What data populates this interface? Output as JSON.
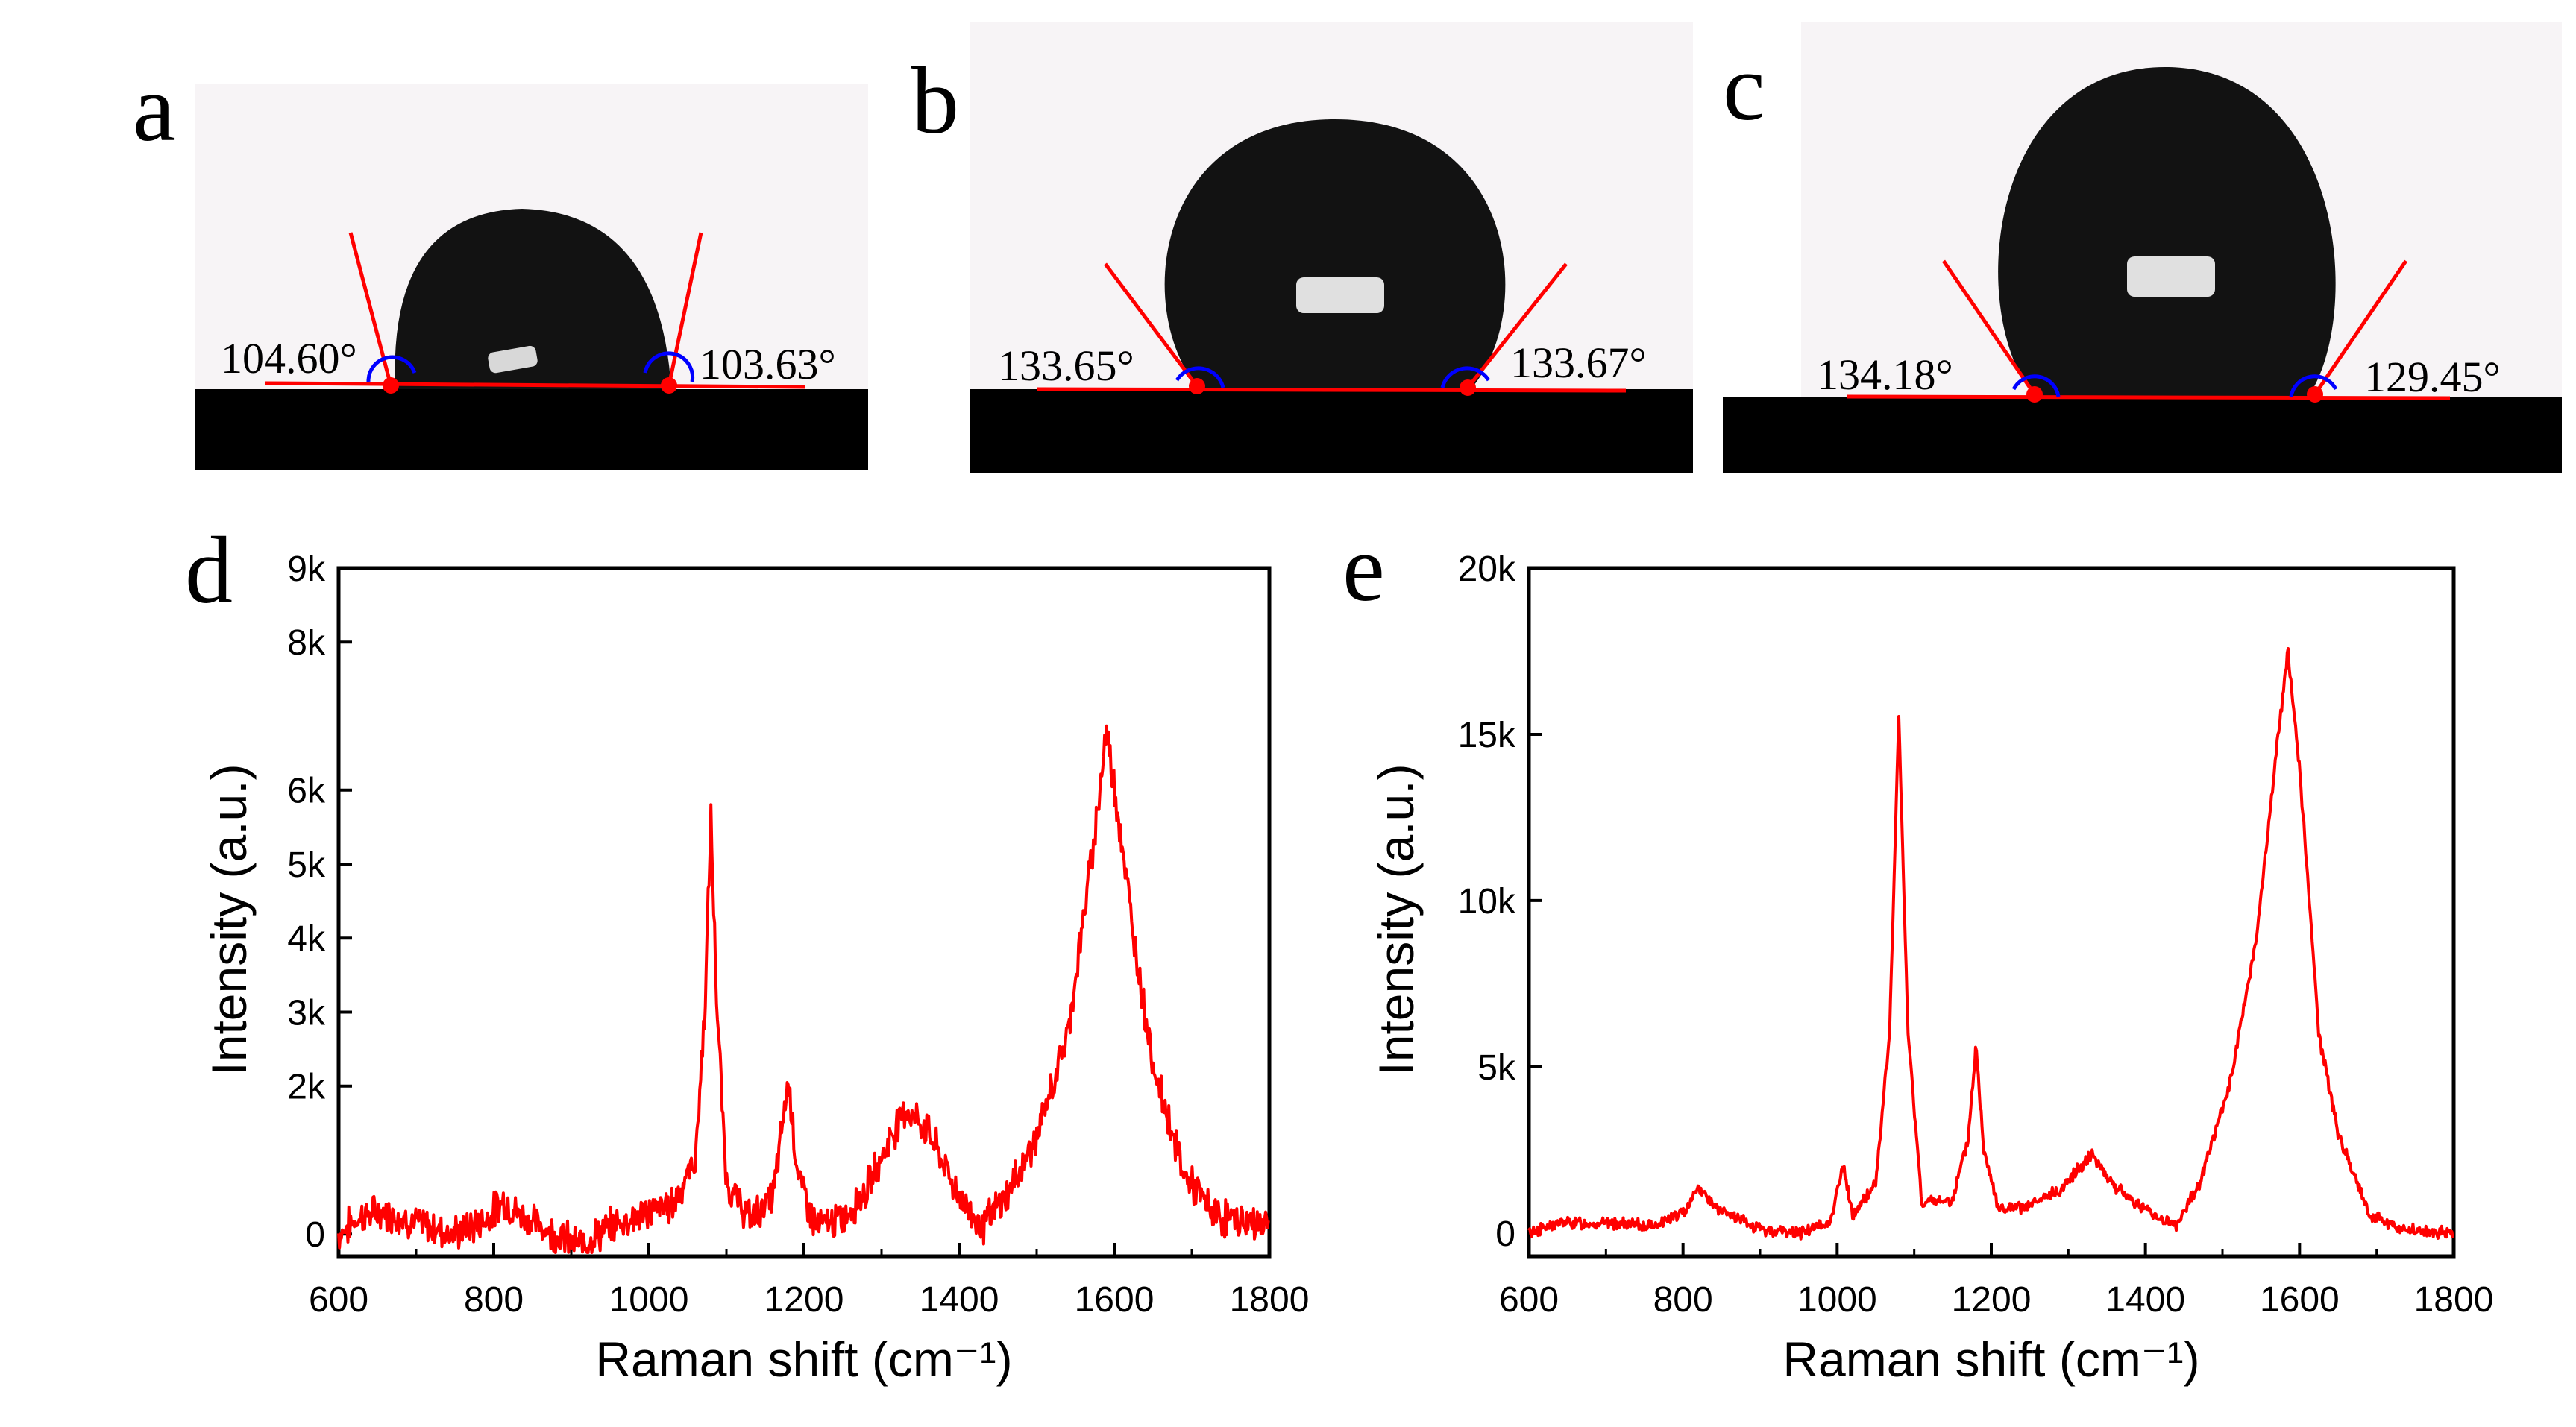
{
  "panels": {
    "a": {
      "letter": "a",
      "left_angle": "104.60°",
      "right_angle": "103.63°"
    },
    "b": {
      "letter": "b",
      "left_angle": "133.65°",
      "right_angle": "133.67°"
    },
    "c": {
      "letter": "c",
      "left_angle": "134.18°",
      "right_angle": "129.45°"
    },
    "d": {
      "letter": "d"
    },
    "e": {
      "letter": "e"
    }
  },
  "colors": {
    "line": "#ff0000",
    "arc": "#0000ff",
    "substrate": "#000000",
    "droplet": "#111111"
  },
  "chart_data": [
    {
      "id": "d",
      "type": "line",
      "title": "",
      "xlabel": "Raman shift (cm⁻¹)",
      "ylabel": "Intensity (a.u.)",
      "xlim": [
        600,
        1800
      ],
      "ylim": [
        -300,
        9000
      ],
      "xticks": [
        600,
        800,
        1000,
        1200,
        1400,
        1600,
        1800
      ],
      "xtick_labels": [
        "600",
        "800",
        "1000",
        "1200",
        "1400",
        "1600",
        "1800"
      ],
      "yticks": [
        0,
        2000,
        3000,
        4000,
        5000,
        6000,
        8000,
        9000
      ],
      "ytick_labels": [
        "0",
        "2k",
        "3k",
        "4k",
        "5k",
        "6k",
        "8k",
        "9k"
      ],
      "baseline": [
        [
          600,
          0
        ],
        [
          630,
          250
        ],
        [
          660,
          300
        ],
        [
          700,
          150
        ],
        [
          750,
          0
        ],
        [
          790,
          200
        ],
        [
          812,
          450
        ],
        [
          835,
          250
        ],
        [
          880,
          0
        ],
        [
          910,
          -150
        ],
        [
          960,
          150
        ],
        [
          1000,
          300
        ],
        [
          1030,
          400
        ],
        [
          1060,
          1000
        ],
        [
          1072,
          3000
        ],
        [
          1080,
          5600
        ],
        [
          1088,
          3000
        ],
        [
          1100,
          700
        ],
        [
          1130,
          200
        ],
        [
          1160,
          500
        ],
        [
          1180,
          2100
        ],
        [
          1192,
          800
        ],
        [
          1215,
          100
        ],
        [
          1250,
          200
        ],
        [
          1280,
          600
        ],
        [
          1330,
          1700
        ],
        [
          1360,
          1400
        ],
        [
          1400,
          500
        ],
        [
          1430,
          100
        ],
        [
          1460,
          500
        ],
        [
          1500,
          1300
        ],
        [
          1540,
          2700
        ],
        [
          1570,
          5000
        ],
        [
          1590,
          6800
        ],
        [
          1605,
          5700
        ],
        [
          1625,
          4000
        ],
        [
          1650,
          2300
        ],
        [
          1690,
          800
        ],
        [
          1730,
          250
        ],
        [
          1770,
          150
        ],
        [
          1800,
          150
        ]
      ],
      "noise": 380,
      "peaks_labeled": []
    },
    {
      "id": "e",
      "type": "line",
      "title": "",
      "xlabel": "Raman shift (cm⁻¹)",
      "ylabel": "Intensity (a.u.)",
      "xlim": [
        600,
        1800
      ],
      "ylim": [
        -700,
        20000
      ],
      "xticks": [
        600,
        800,
        1000,
        1200,
        1400,
        1600,
        1800
      ],
      "xtick_labels": [
        "600",
        "800",
        "1000",
        "1200",
        "1400",
        "1600",
        "1800"
      ],
      "yticks": [
        0,
        5000,
        10000,
        15000,
        20000
      ],
      "ytick_labels": [
        "0",
        "5k",
        "10k",
        "15k",
        "20k"
      ],
      "baseline": [
        [
          600,
          0
        ],
        [
          640,
          300
        ],
        [
          700,
          300
        ],
        [
          760,
          200
        ],
        [
          800,
          600
        ],
        [
          820,
          1400
        ],
        [
          845,
          700
        ],
        [
          900,
          100
        ],
        [
          950,
          0
        ],
        [
          990,
          300
        ],
        [
          1008,
          2000
        ],
        [
          1020,
          500
        ],
        [
          1050,
          1500
        ],
        [
          1068,
          6000
        ],
        [
          1080,
          15500
        ],
        [
          1092,
          6000
        ],
        [
          1110,
          900
        ],
        [
          1150,
          1000
        ],
        [
          1170,
          2800
        ],
        [
          1180,
          5600
        ],
        [
          1190,
          2600
        ],
        [
          1210,
          700
        ],
        [
          1250,
          800
        ],
        [
          1290,
          1300
        ],
        [
          1330,
          2400
        ],
        [
          1360,
          1400
        ],
        [
          1400,
          700
        ],
        [
          1440,
          200
        ],
        [
          1470,
          1500
        ],
        [
          1510,
          4500
        ],
        [
          1545,
          9000
        ],
        [
          1570,
          14500
        ],
        [
          1585,
          17500
        ],
        [
          1600,
          14000
        ],
        [
          1625,
          6000
        ],
        [
          1650,
          3000
        ],
        [
          1690,
          600
        ],
        [
          1730,
          100
        ],
        [
          1780,
          0
        ],
        [
          1800,
          0
        ]
      ],
      "noise": 280,
      "peaks_labeled": []
    }
  ]
}
